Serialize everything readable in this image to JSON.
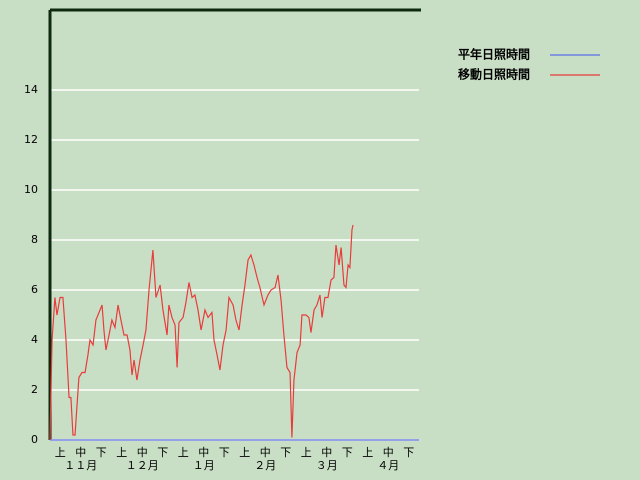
{
  "chart_data": {
    "type": "line",
    "xlim": [
      0,
      18
    ],
    "ylim": [
      0,
      17.2
    ],
    "yticks": [
      0,
      2,
      4,
      6,
      8,
      10,
      12,
      14
    ],
    "xticks": [
      {
        "value": 0.5,
        "label": "上"
      },
      {
        "value": 1.5,
        "label": "中"
      },
      {
        "value": 2.5,
        "label": "下"
      },
      {
        "value": 3.5,
        "label": "上"
      },
      {
        "value": 4.5,
        "label": "中"
      },
      {
        "value": 5.5,
        "label": "下"
      },
      {
        "value": 6.5,
        "label": "上"
      },
      {
        "value": 7.5,
        "label": "中"
      },
      {
        "value": 8.5,
        "label": "下"
      },
      {
        "value": 9.5,
        "label": "上"
      },
      {
        "value": 10.5,
        "label": "中"
      },
      {
        "value": 11.5,
        "label": "下"
      },
      {
        "value": 12.5,
        "label": "上"
      },
      {
        "value": 13.5,
        "label": "中"
      },
      {
        "value": 14.5,
        "label": "下"
      },
      {
        "value": 15.5,
        "label": "上"
      },
      {
        "value": 16.5,
        "label": "中"
      },
      {
        "value": 17.5,
        "label": "下"
      }
    ],
    "month_ticks": [
      {
        "value": 1.5,
        "label": "１１月"
      },
      {
        "value": 4.5,
        "label": "１２月"
      },
      {
        "value": 7.5,
        "label": "１月"
      },
      {
        "value": 10.5,
        "label": "２月"
      },
      {
        "value": 13.5,
        "label": "３月"
      },
      {
        "value": 16.5,
        "label": "４月"
      }
    ],
    "grid": true,
    "series": [
      {
        "name": "平年日照時間",
        "color": "#5a6ee6",
        "x": [
          0,
          18
        ],
        "values": [
          0,
          0
        ]
      },
      {
        "name": "移動日照時間",
        "color": "#e83c3c",
        "x": [
          0,
          0.1,
          0.24,
          0.34,
          0.49,
          0.63,
          0.78,
          0.93,
          1.02,
          1.12,
          1.22,
          1.41,
          1.56,
          1.71,
          1.85,
          1.95,
          2.1,
          2.24,
          2.39,
          2.54,
          2.63,
          2.73,
          2.88,
          3.02,
          3.17,
          3.32,
          3.46,
          3.61,
          3.76,
          3.9,
          4,
          4.1,
          4.24,
          4.39,
          4.54,
          4.68,
          4.83,
          5.02,
          5.17,
          5.37,
          5.51,
          5.71,
          5.8,
          5.95,
          6.1,
          6.2,
          6.29,
          6.49,
          6.63,
          6.78,
          6.93,
          7.07,
          7.22,
          7.37,
          7.56,
          7.71,
          7.9,
          8,
          8.15,
          8.29,
          8.44,
          8.59,
          8.73,
          8.93,
          9.07,
          9.22,
          9.37,
          9.51,
          9.66,
          9.8,
          9.95,
          10.1,
          10.24,
          10.44,
          10.63,
          10.78,
          10.98,
          11.12,
          11.27,
          11.41,
          11.56,
          11.71,
          11.8,
          11.9,
          12.05,
          12.2,
          12.29,
          12.49,
          12.63,
          12.73,
          12.88,
          13.02,
          13.17,
          13.27,
          13.41,
          13.56,
          13.71,
          13.85,
          13.95,
          14.1,
          14.2,
          14.34,
          14.44,
          14.54,
          14.63,
          14.73,
          14.78
        ],
        "values": [
          0,
          4,
          5.7,
          5,
          5.7,
          5.7,
          4,
          1.7,
          1.7,
          0.2,
          0.2,
          2.5,
          2.7,
          2.7,
          3.4,
          4,
          3.8,
          4.8,
          5.1,
          5.4,
          4.4,
          3.6,
          4.2,
          4.8,
          4.5,
          5.4,
          4.8,
          4.2,
          4.2,
          3.6,
          2.6,
          3.2,
          2.4,
          3.2,
          3.8,
          4.4,
          6,
          7.6,
          5.7,
          6.2,
          5.2,
          4.2,
          5.4,
          4.9,
          4.6,
          2.9,
          4.7,
          4.9,
          5.5,
          6.3,
          5.7,
          5.8,
          5.2,
          4.4,
          5.2,
          4.9,
          5.1,
          4,
          3.4,
          2.8,
          3.8,
          4.4,
          5.7,
          5.4,
          4.8,
          4.4,
          5.4,
          6.2,
          7.2,
          7.4,
          7,
          6.5,
          6.1,
          5.4,
          5.8,
          6,
          6.1,
          6.6,
          5.6,
          4.2,
          2.9,
          2.7,
          0.1,
          2.4,
          3.5,
          3.8,
          5,
          5,
          4.9,
          4.3,
          5.2,
          5.4,
          5.8,
          4.9,
          5.7,
          5.7,
          6.4,
          6.5,
          7.8,
          7,
          7.7,
          6.2,
          6.1,
          7,
          6.9,
          8.4,
          8.6
        ]
      }
    ]
  }
}
